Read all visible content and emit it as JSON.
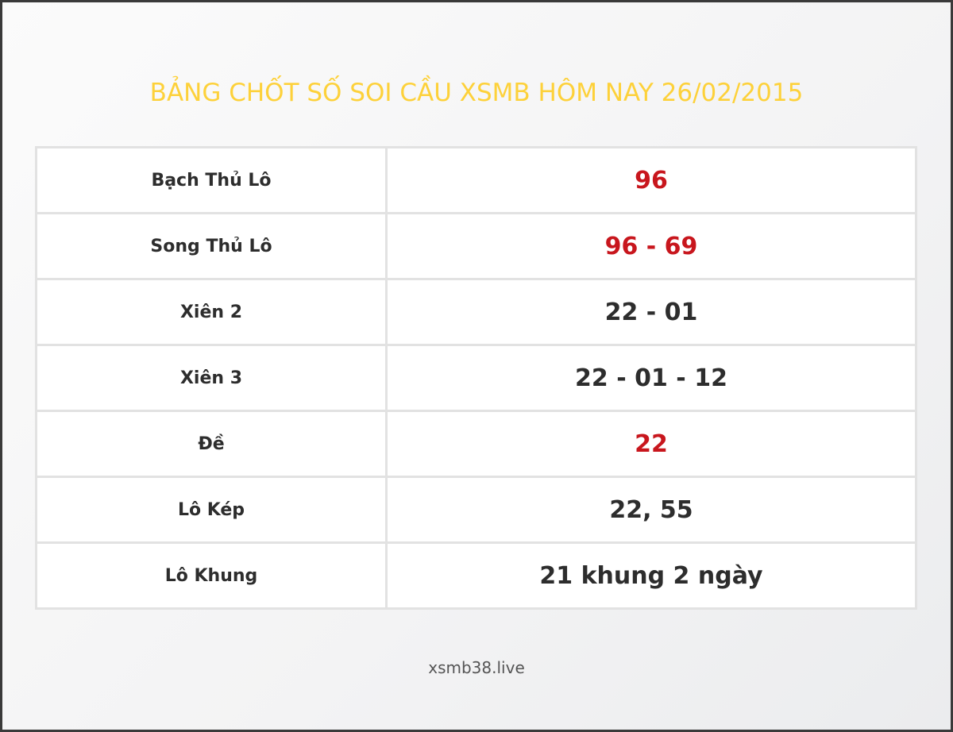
{
  "title": "BẢNG CHỐT SỐ SOI CẦU XSMB HÔM NAY 26/02/2015",
  "rows": [
    {
      "label": "Bạch Thủ Lô",
      "value": "96",
      "highlight": true
    },
    {
      "label": "Song Thủ Lô",
      "value": "96 - 69",
      "highlight": true
    },
    {
      "label": "Xiên 2",
      "value": "22 - 01",
      "highlight": false
    },
    {
      "label": "Xiên 3",
      "value": "22 - 01 - 12",
      "highlight": false
    },
    {
      "label": "Đề",
      "value": "22",
      "highlight": true
    },
    {
      "label": "Lô Kép",
      "value": "22, 55",
      "highlight": false
    },
    {
      "label": "Lô Khung",
      "value": "21 khung 2 ngày",
      "highlight": false
    }
  ],
  "footer": "xsmb38.live",
  "colors": {
    "title": "#fdd13a",
    "highlight": "#c8161d",
    "text": "#2d2d2d"
  }
}
